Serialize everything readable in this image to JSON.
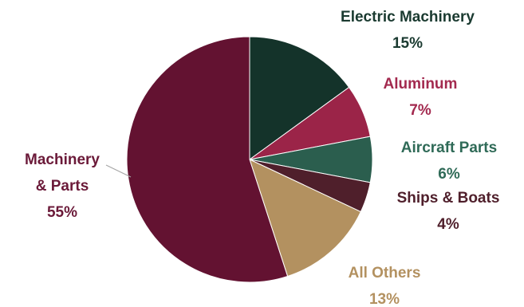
{
  "chart_data": {
    "type": "pie",
    "title": "",
    "slices": [
      {
        "label": "Electric Machinery",
        "value": 15,
        "value_label": "15%",
        "color": "#14332a"
      },
      {
        "label": "Aluminum",
        "value": 7,
        "value_label": "7%",
        "color": "#9b2448"
      },
      {
        "label": "Aircraft Parts",
        "value": 6,
        "value_label": "6%",
        "color": "#2b5e4e"
      },
      {
        "label": "Ships & Boats",
        "value": 4,
        "value_label": "4%",
        "color": "#4f1f2b"
      },
      {
        "label": "All Others",
        "value": 13,
        "value_label": "13%",
        "color": "#b39160"
      },
      {
        "label": "Machinery & Parts",
        "value": 55,
        "value_label": "55%",
        "color": "#631231"
      }
    ],
    "start_angle_deg": 0,
    "direction": "clockwise",
    "legend": "none",
    "label_colors": {
      "Electric Machinery": "#1a3a30",
      "Aluminum": "#a32a4f",
      "Aircraft Parts": "#2f6a57",
      "Ships & Boats": "#4f1f2b",
      "All Others": "#b39160",
      "Machinery & Parts": "#6b1a39"
    }
  }
}
